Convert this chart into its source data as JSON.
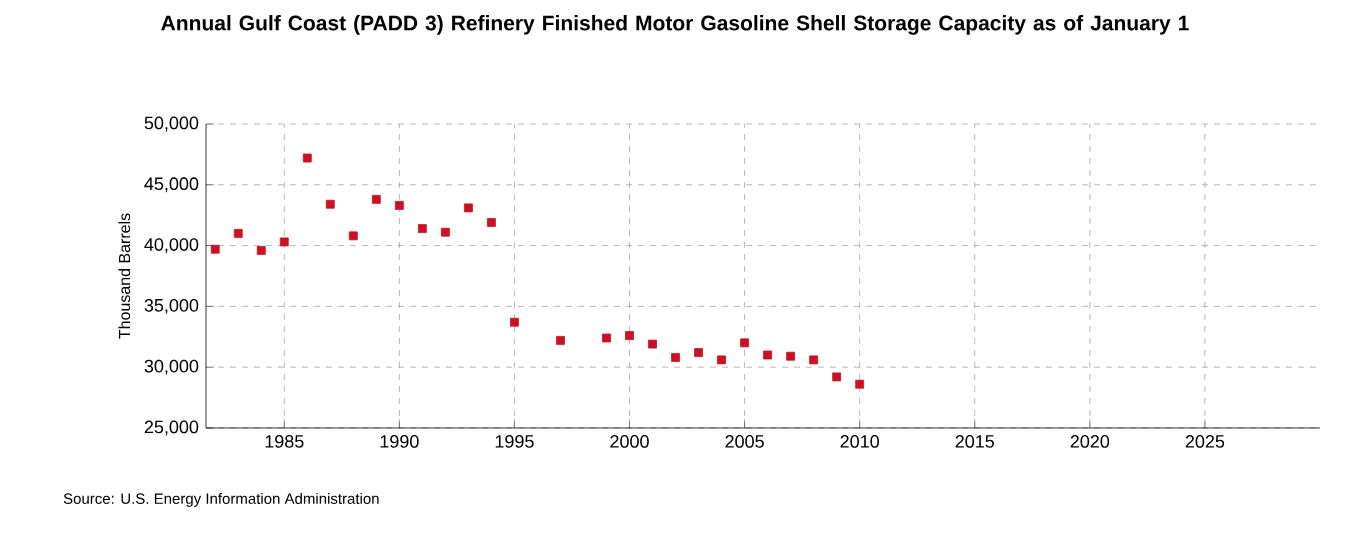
{
  "chart_data": {
    "type": "scatter",
    "title": "Annual Gulf Coast (PADD 3) Refinery Finished Motor Gasoline Shell Storage Capacity as of January  1",
    "ylabel": "Thousand Barrels",
    "annotations": [
      "Source: U.S. Energy Information Administration"
    ],
    "x": [
      1982,
      1983,
      1984,
      1985,
      1986,
      1987,
      1988,
      1989,
      1990,
      1991,
      1992,
      1993,
      1994,
      1995,
      1997,
      1999,
      2000,
      2001,
      2002,
      2003,
      2004,
      2005,
      2006,
      2007,
      2008,
      2009,
      2010
    ],
    "series": [
      {
        "color": "#cc1122",
        "values": [
          39700,
          41000,
          39600,
          40300,
          47200,
          43400,
          40800,
          43800,
          43300,
          41400,
          41100,
          43100,
          41900,
          33700,
          32200,
          32400,
          32600,
          31900,
          30800,
          31200,
          30600,
          32000,
          31000,
          30900,
          30600,
          29200,
          28600
        ]
      }
    ],
    "xlim": [
      1981.6,
      2030
    ],
    "xticks": [
      1985,
      1990,
      1995,
      2000,
      2005,
      2010,
      2015,
      2020,
      2025
    ],
    "ylim": [
      25000,
      50000
    ],
    "yticks": [
      {
        "value": 25000,
        "label": "25,000"
      },
      {
        "value": 30000,
        "label": "30,000"
      },
      {
        "value": 35000,
        "label": "35,000"
      },
      {
        "value": 40000,
        "label": "40,000"
      },
      {
        "value": 45000,
        "label": "45,000"
      },
      {
        "value": 50000,
        "label": "50,000"
      }
    ],
    "grid": true,
    "marker": "square"
  }
}
